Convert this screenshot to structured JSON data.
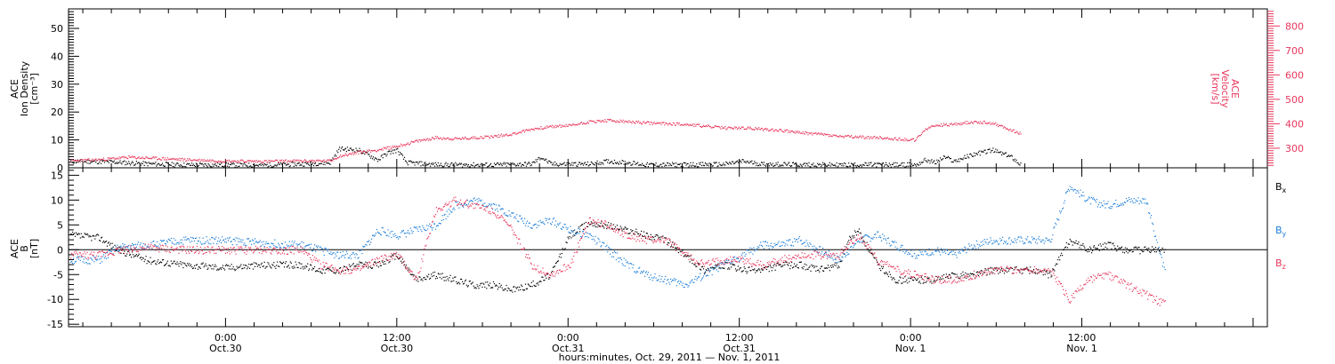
{
  "chart_data": [
    {
      "type": "scatter",
      "panel": "top",
      "ylabel_left": [
        "ACE",
        "Ion Density",
        "[cm⁻³]"
      ],
      "ylabel_right": [
        "ACE",
        "Velocity",
        "[km/s]"
      ],
      "ylim_left": [
        0,
        57
      ],
      "ylim_right": [
        220,
        870
      ],
      "yticks_left": [
        "0",
        "10",
        "20",
        "30",
        "40",
        "50"
      ],
      "yticks_right": [
        "300",
        "400",
        "500",
        "600",
        "700",
        "800"
      ],
      "right_axis_color": "#e8375c",
      "series": [
        {
          "name": "",
          "color": "#000000",
          "axis": "left",
          "points": [
            [
              0,
              2.5
            ],
            [
              4,
              2.3
            ],
            [
              8,
              1.6
            ],
            [
              12,
              1.2
            ],
            [
              16,
              1.2
            ],
            [
              20,
              1.1
            ],
            [
              24,
              1.5
            ],
            [
              27,
              2.0
            ],
            [
              28,
              7.0
            ],
            [
              30,
              6.5
            ],
            [
              32,
              3.0
            ],
            [
              33,
              5.5
            ],
            [
              34,
              6.5
            ],
            [
              35,
              2.0
            ],
            [
              38,
              1.3
            ],
            [
              44,
              1.2
            ],
            [
              46,
              1.4
            ],
            [
              48,
              1.5
            ],
            [
              49,
              4.0
            ],
            [
              50,
              1.5
            ],
            [
              54,
              1.5
            ],
            [
              56,
              2.5
            ],
            [
              58,
              2.0
            ],
            [
              60,
              1.2
            ],
            [
              64,
              1.3
            ],
            [
              68,
              1.4
            ],
            [
              70,
              2.5
            ],
            [
              72,
              1.5
            ],
            [
              76,
              1.3
            ],
            [
              80,
              1.2
            ],
            [
              84,
              1.3
            ],
            [
              88,
              1.2
            ],
            [
              89,
              3.0
            ],
            [
              90,
              2.0
            ],
            [
              91,
              4.0
            ],
            [
              92,
              2.5
            ],
            [
              94,
              5.0
            ],
            [
              96,
              6.5
            ],
            [
              98,
              4.0
            ],
            [
              99,
              1.2
            ]
          ]
        },
        {
          "name": "",
          "color": "#e8375c",
          "axis": "right",
          "points": [
            [
              0,
              250
            ],
            [
              3,
              255
            ],
            [
              6,
              265
            ],
            [
              8,
              262
            ],
            [
              12,
              255
            ],
            [
              16,
              250
            ],
            [
              20,
              248
            ],
            [
              24,
              250
            ],
            [
              27,
              250
            ],
            [
              28,
              270
            ],
            [
              30,
              285
            ],
            [
              32,
              295
            ],
            [
              34,
              310
            ],
            [
              36,
              330
            ],
            [
              38,
              345
            ],
            [
              40,
              340
            ],
            [
              42,
              345
            ],
            [
              44,
              350
            ],
            [
              46,
              360
            ],
            [
              48,
              380
            ],
            [
              50,
              390
            ],
            [
              52,
              395
            ],
            [
              54,
              410
            ],
            [
              56,
              415
            ],
            [
              58,
              410
            ],
            [
              60,
              405
            ],
            [
              64,
              400
            ],
            [
              68,
              385
            ],
            [
              70,
              385
            ],
            [
              72,
              380
            ],
            [
              74,
              375
            ],
            [
              76,
              365
            ],
            [
              78,
              360
            ],
            [
              80,
              350
            ],
            [
              84,
              345
            ],
            [
              88,
              335
            ],
            [
              89,
              380
            ],
            [
              90,
              395
            ],
            [
              92,
              400
            ],
            [
              94,
              410
            ],
            [
              96,
              405
            ],
            [
              98,
              375
            ],
            [
              99,
              360
            ]
          ]
        }
      ]
    },
    {
      "type": "scatter",
      "panel": "bottom",
      "ylabel_left": [
        "ACE",
        "B",
        "[nT]"
      ],
      "ylim": [
        -15.5,
        16.5
      ],
      "yticks": [
        "-15",
        "-10",
        "-5",
        "0",
        "5",
        "10",
        "15"
      ],
      "x_tick_labels": [
        {
          "time": "0:00",
          "date": "Oct.30",
          "hour": 24
        },
        {
          "time": "12:00",
          "date": "Oct.30",
          "hour": 36
        },
        {
          "time": "0:00",
          "date": "Oct.31",
          "hour": 48
        },
        {
          "time": "12:00",
          "date": "Oct.31",
          "hour": 60
        },
        {
          "time": "0:00",
          "date": "Nov. 1",
          "hour": 72
        },
        {
          "time": "12:00",
          "date": "Nov. 1",
          "hour": 84
        }
      ],
      "xlim_hours": [
        13,
        97
      ],
      "xlabel": "hours:minutes, Oct. 29, 2011 — Nov.  1, 2011",
      "legend": [
        {
          "label": "B",
          "sub": "x",
          "color": "#000000"
        },
        {
          "label": "B",
          "sub": "y",
          "color": "#1e7fd8"
        },
        {
          "label": "B",
          "sub": "z",
          "color": "#e8375c"
        }
      ],
      "series": [
        {
          "name": "Bx",
          "color": "#000000",
          "points": [
            [
              0,
              3
            ],
            [
              3,
              2.5
            ],
            [
              5,
              0
            ],
            [
              8,
              -2
            ],
            [
              12,
              -3
            ],
            [
              16,
              -3.5
            ],
            [
              20,
              -3
            ],
            [
              24,
              -3
            ],
            [
              26,
              -4
            ],
            [
              28,
              -4
            ],
            [
              30,
              -3
            ],
            [
              32,
              -3
            ],
            [
              34,
              -1
            ],
            [
              36,
              -6
            ],
            [
              38,
              -5
            ],
            [
              40,
              -6
            ],
            [
              42,
              -7
            ],
            [
              44,
              -7
            ],
            [
              46,
              -8
            ],
            [
              48,
              -7
            ],
            [
              50,
              -5
            ],
            [
              52,
              3
            ],
            [
              54,
              5.5
            ],
            [
              56,
              5
            ],
            [
              58,
              4
            ],
            [
              60,
              3
            ],
            [
              62,
              2
            ],
            [
              64,
              -1
            ],
            [
              66,
              -4
            ],
            [
              68,
              -3
            ],
            [
              70,
              -4
            ],
            [
              72,
              -4
            ],
            [
              74,
              -3
            ],
            [
              76,
              -3
            ],
            [
              78,
              -4
            ],
            [
              80,
              -3
            ],
            [
              81,
              2
            ],
            [
              82,
              4
            ],
            [
              84,
              -3
            ],
            [
              86,
              -6
            ],
            [
              88,
              -6
            ],
            [
              90,
              -6
            ],
            [
              92,
              -5
            ],
            [
              94,
              -5
            ],
            [
              96,
              -4
            ],
            [
              98,
              -4
            ],
            [
              100,
              -4
            ],
            [
              102,
              -5
            ],
            [
              104,
              2
            ],
            [
              106,
              0
            ],
            [
              108,
              1
            ],
            [
              110,
              0
            ],
            [
              112,
              0
            ],
            [
              114,
              0
            ]
          ]
        },
        {
          "name": "By",
          "color": "#1e7fd8",
          "points": [
            [
              0,
              -2
            ],
            [
              3,
              -2
            ],
            [
              5,
              0.5
            ],
            [
              8,
              1
            ],
            [
              12,
              2
            ],
            [
              16,
              2
            ],
            [
              20,
              1.5
            ],
            [
              24,
              1
            ],
            [
              26,
              0
            ],
            [
              28,
              -1
            ],
            [
              30,
              -1
            ],
            [
              32,
              4
            ],
            [
              34,
              3
            ],
            [
              36,
              4
            ],
            [
              38,
              5
            ],
            [
              40,
              9
            ],
            [
              42,
              10
            ],
            [
              44,
              9
            ],
            [
              46,
              7
            ],
            [
              48,
              5
            ],
            [
              50,
              6
            ],
            [
              52,
              4
            ],
            [
              54,
              3
            ],
            [
              56,
              0
            ],
            [
              58,
              -3
            ],
            [
              60,
              -5
            ],
            [
              62,
              -6
            ],
            [
              64,
              -7
            ],
            [
              66,
              -5
            ],
            [
              68,
              -3
            ],
            [
              70,
              -1
            ],
            [
              72,
              1
            ],
            [
              74,
              1
            ],
            [
              76,
              2
            ],
            [
              78,
              0
            ],
            [
              80,
              -2
            ],
            [
              82,
              2
            ],
            [
              84,
              3
            ],
            [
              86,
              1
            ],
            [
              88,
              -1
            ],
            [
              90,
              0
            ],
            [
              92,
              -1
            ],
            [
              94,
              1
            ],
            [
              96,
              2
            ],
            [
              98,
              2
            ],
            [
              100,
              2
            ],
            [
              102,
              2
            ],
            [
              104,
              13
            ],
            [
              106,
              10
            ],
            [
              108,
              9
            ],
            [
              110,
              10
            ],
            [
              112,
              10
            ],
            [
              114,
              -5
            ]
          ]
        },
        {
          "name": "Bz",
          "color": "#e8375c",
          "points": [
            [
              0,
              -1
            ],
            [
              3,
              -1
            ],
            [
              5,
              0
            ],
            [
              8,
              0.5
            ],
            [
              12,
              0
            ],
            [
              16,
              0
            ],
            [
              20,
              0
            ],
            [
              24,
              0
            ],
            [
              26,
              -3
            ],
            [
              28,
              -4
            ],
            [
              30,
              -4
            ],
            [
              32,
              -2
            ],
            [
              34,
              -1
            ],
            [
              36,
              -6
            ],
            [
              38,
              8
            ],
            [
              40,
              10
            ],
            [
              42,
              9
            ],
            [
              44,
              8
            ],
            [
              46,
              4
            ],
            [
              48,
              -3
            ],
            [
              50,
              -5
            ],
            [
              52,
              -3
            ],
            [
              54,
              6
            ],
            [
              56,
              5
            ],
            [
              58,
              3
            ],
            [
              60,
              2
            ],
            [
              62,
              2
            ],
            [
              64,
              -1
            ],
            [
              66,
              -3
            ],
            [
              68,
              -2
            ],
            [
              70,
              -2
            ],
            [
              72,
              -3
            ],
            [
              74,
              -2
            ],
            [
              76,
              -1
            ],
            [
              78,
              -1
            ],
            [
              80,
              -1
            ],
            [
              82,
              3
            ],
            [
              84,
              -2
            ],
            [
              86,
              -4
            ],
            [
              88,
              -5
            ],
            [
              90,
              -6
            ],
            [
              92,
              -6
            ],
            [
              94,
              -5
            ],
            [
              96,
              -4
            ],
            [
              98,
              -4
            ],
            [
              100,
              -4
            ],
            [
              102,
              -4
            ],
            [
              104,
              -10
            ],
            [
              106,
              -6
            ],
            [
              108,
              -5
            ],
            [
              110,
              -7
            ],
            [
              112,
              -9
            ],
            [
              114,
              -11
            ]
          ]
        }
      ]
    }
  ]
}
